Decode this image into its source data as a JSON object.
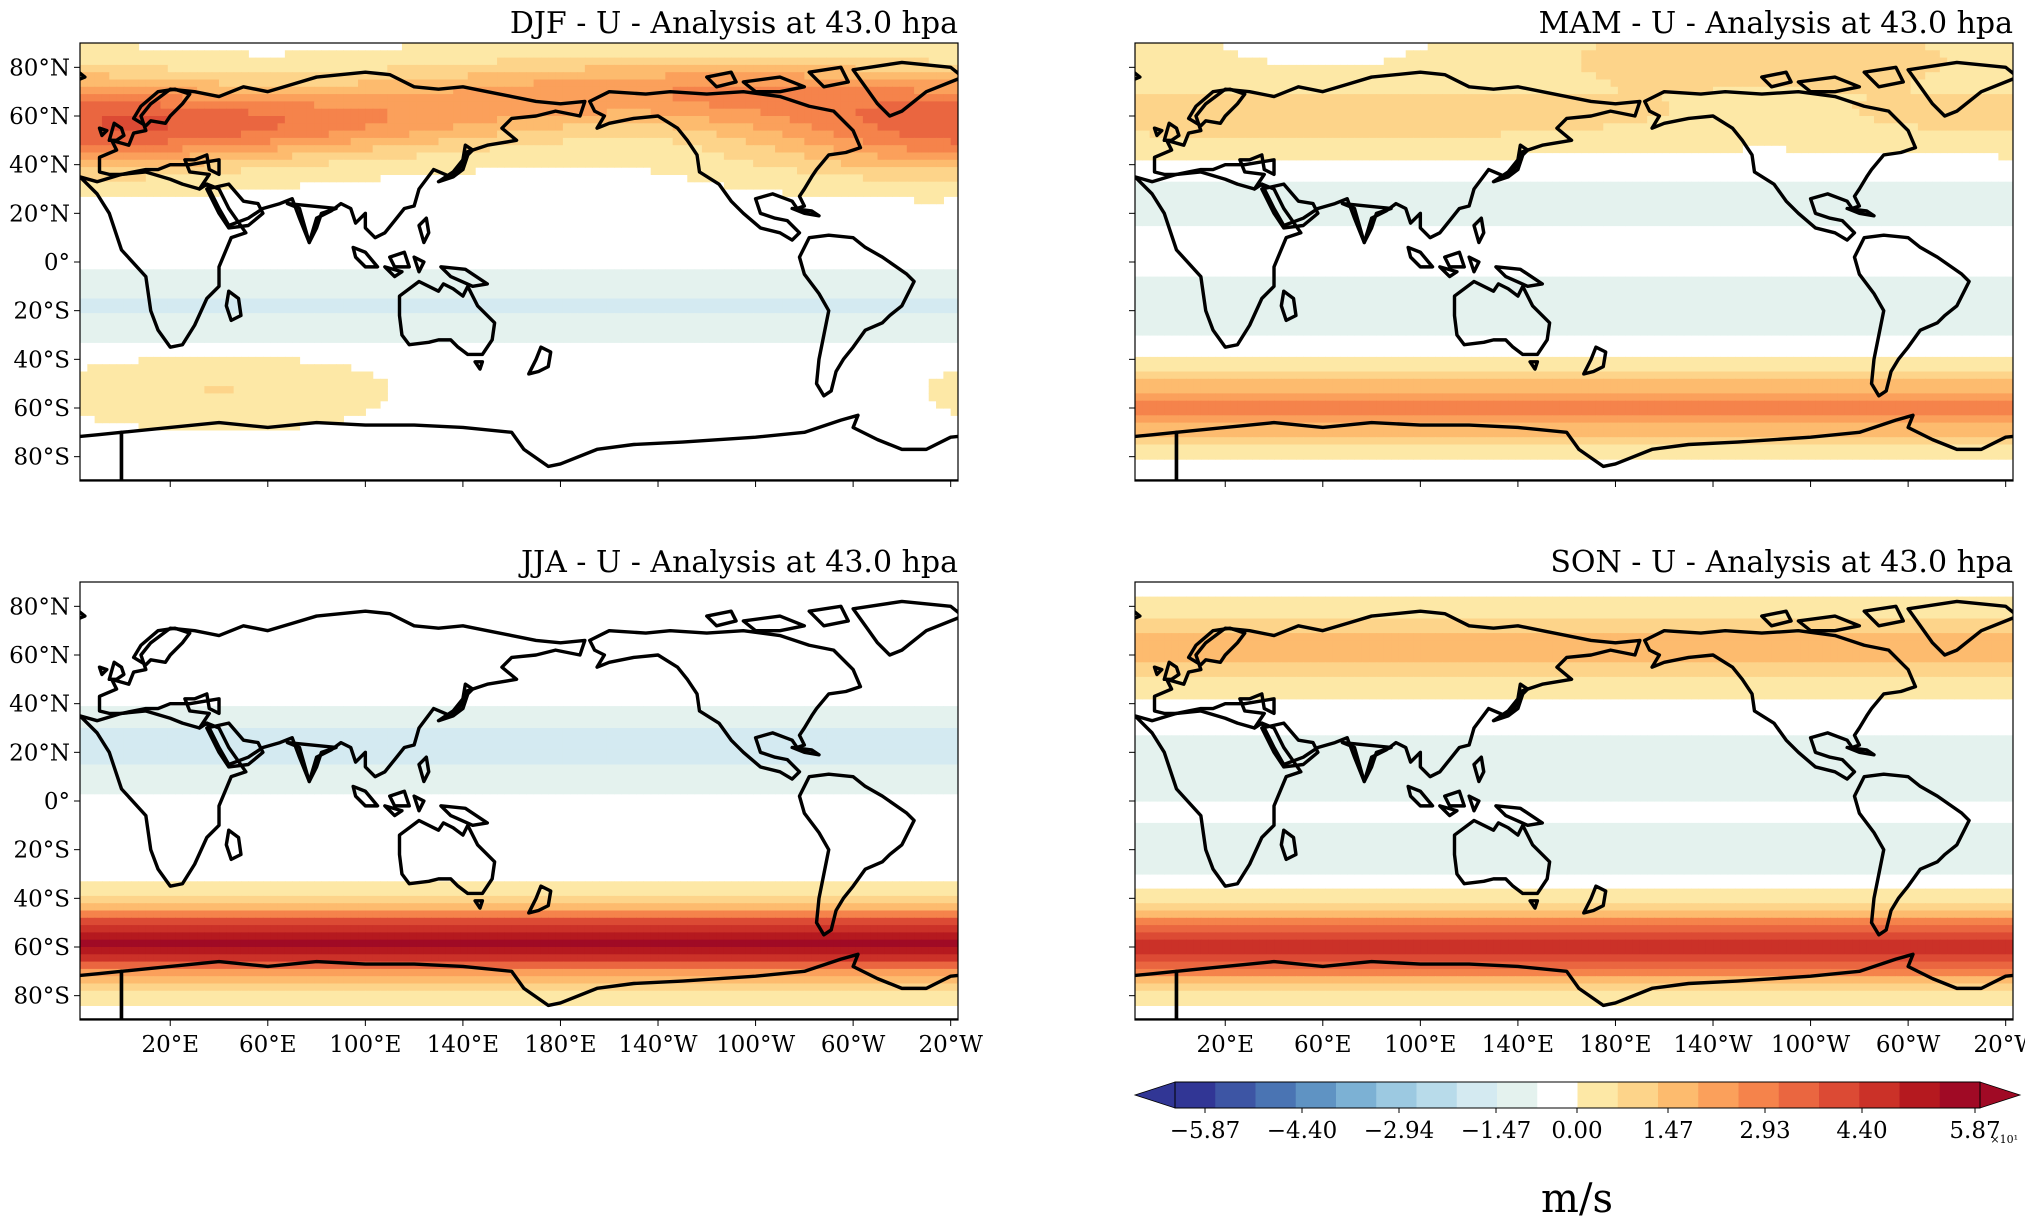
{
  "figure": {
    "variable": "U",
    "level_label": "43.0 hpa",
    "panels": [
      {
        "id": "djf",
        "title": "DJF - U - Analysis at 43.0 hpa",
        "show_lat_labels": true,
        "show_lon_labels": false
      },
      {
        "id": "mam",
        "title": "MAM - U - Analysis at 43.0 hpa",
        "show_lat_labels": false,
        "show_lon_labels": false
      },
      {
        "id": "jja",
        "title": "JJA - U - Analysis at 43.0 hpa",
        "show_lat_labels": true,
        "show_lon_labels": true
      },
      {
        "id": "son",
        "title": "SON - U - Analysis at 43.0 hpa",
        "show_lat_labels": false,
        "show_lon_labels": true
      }
    ],
    "lat_ticks": [
      "80°N",
      "60°N",
      "40°N",
      "20°N",
      "0°",
      "20°S",
      "40°S",
      "60°S",
      "80°S"
    ],
    "lon_ticks": [
      "20°E",
      "60°E",
      "100°E",
      "140°E",
      "180°E",
      "140°W",
      "100°W",
      "60°W",
      "20°W"
    ]
  },
  "colorbar": {
    "tick_labels": [
      "−5.87",
      "−4.40",
      "−2.94",
      "−1.47",
      "0.00",
      "1.47",
      "2.93",
      "4.40",
      "5.87"
    ],
    "unit_label": "m/s",
    "scale_label": "×10¹",
    "colors": [
      "#313695",
      "#3d55a4",
      "#4a74b3",
      "#5f93c3",
      "#7cb1d4",
      "#9cc9e1",
      "#b8dbea",
      "#d4eaf1",
      "#e4f2ee",
      "#ffffff",
      "#fde8a6",
      "#fdd48a",
      "#fdbb6e",
      "#fba05b",
      "#f5834b",
      "#ea6640",
      "#dc4a34",
      "#cb3128",
      "#b5191f",
      "#a00a25"
    ]
  },
  "chart_data": {
    "type": "heatmap",
    "description_units": "zonal wind U in m/s (approx, read from colors)",
    "lon_range": [
      0,
      360
    ],
    "lat_range": [
      -90,
      90
    ],
    "levels": [
      -58.7,
      -44.0,
      -29.4,
      -14.7,
      0.0,
      14.7,
      29.3,
      44.0,
      58.7
    ],
    "panels": [
      {
        "id": "djf",
        "zonal_features": [
          {
            "lat": 57,
            "peak": 30,
            "lon_center": 35,
            "lon_width": 120
          },
          {
            "lat": 70,
            "peak": 24,
            "lon_center": 240,
            "lon_width": 140
          },
          {
            "lat": 45,
            "peak": 13,
            "lon_center": 330,
            "lon_width": 80
          },
          {
            "lat": -18,
            "peak": -8,
            "lon_center": 180,
            "lon_width": 999
          },
          {
            "lat": -53,
            "peak": 8,
            "lon_center": 40,
            "lon_width": 60
          }
        ]
      },
      {
        "id": "mam",
        "zonal_features": [
          {
            "lat": 60,
            "peak": 12,
            "lon_center": 60,
            "lon_width": 200
          },
          {
            "lat": 85,
            "peak": 13,
            "lon_center": 240,
            "lon_width": 100
          },
          {
            "lat": 25,
            "peak": -3,
            "lon_center": 200,
            "lon_width": 999
          },
          {
            "lat": -18,
            "peak": -4,
            "lon_center": 180,
            "lon_width": 999
          },
          {
            "lat": -60,
            "peak": 26,
            "lon_center": 180,
            "lon_width": 999
          }
        ]
      },
      {
        "id": "jja",
        "zonal_features": [
          {
            "lat": 22,
            "peak": -10,
            "lon_center": 180,
            "lon_width": 999
          },
          {
            "lat": -58,
            "peak": 55,
            "lon_center": 180,
            "lon_width": 999
          }
        ]
      },
      {
        "id": "son",
        "zonal_features": [
          {
            "lat": 63,
            "peak": 16,
            "lon_center": 180,
            "lon_width": 999
          },
          {
            "lat": 15,
            "peak": -5,
            "lon_center": 180,
            "lon_width": 999
          },
          {
            "lat": -22,
            "peak": -4,
            "lon_center": 180,
            "lon_width": 999
          },
          {
            "lat": -60,
            "peak": 46,
            "lon_center": 180,
            "lon_width": 999
          }
        ]
      }
    ]
  }
}
